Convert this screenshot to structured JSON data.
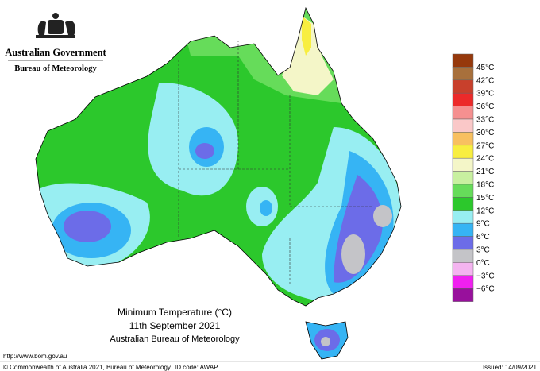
{
  "header": {
    "government": "Australian Government",
    "bureau": "Bureau of Meteorology"
  },
  "map": {
    "title": "Minimum Temperature (°C)",
    "date": "11th September 2021",
    "source": "Australian Bureau of Meteorology"
  },
  "legend": {
    "colors": [
      "#96390c",
      "#a8703c",
      "#c8402c",
      "#ec2a2a",
      "#f59090",
      "#fac8c8",
      "#f8c060",
      "#f8ee40",
      "#f4f6c8",
      "#c8f0a0",
      "#66dc5a",
      "#2cc82c",
      "#98eef2",
      "#36b4f4",
      "#6c6ce8",
      "#c4c4c8",
      "#f4b4f0",
      "#f020f0",
      "#98109c"
    ],
    "labels": [
      "45°C",
      "42°C",
      "39°C",
      "36°C",
      "33°C",
      "30°C",
      "27°C",
      "24°C",
      "21°C",
      "18°C",
      "15°C",
      "12°C",
      "9°C",
      "6°C",
      "3°C",
      "0°C",
      "−3°C",
      "−6°C"
    ]
  },
  "footer": {
    "url": "http://www.bom.gov.au",
    "copyright": "© Commonwealth of Australia 2021, Bureau of Meteorology",
    "id_code": "ID code: AWAP",
    "issued": "Issued: 14/09/2021"
  }
}
